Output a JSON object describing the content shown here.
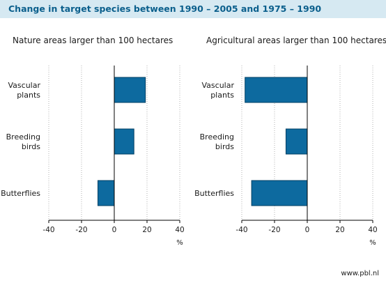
{
  "header": {
    "title": "Change in target species between 1990 – 2005 and 1975 – 1990"
  },
  "footer": {
    "source": "www.pbl.nl"
  },
  "colors": {
    "bar_fill": "#0d6a9f",
    "bar_stroke": "#003f63",
    "title_bg": "#d6e9f2",
    "title_text": "#0b5f8c",
    "grid": "#b0b0b0"
  },
  "chart_data": [
    {
      "type": "bar",
      "orientation": "horizontal",
      "title": "Nature areas larger than 100 hectares",
      "categories": [
        [
          "Vascular",
          "plants"
        ],
        [
          "Breeding",
          "birds"
        ],
        [
          "Butterflies"
        ]
      ],
      "values": [
        19,
        12,
        -10
      ],
      "xlim": [
        -40,
        40
      ],
      "xticks": [
        -40,
        -20,
        0,
        20,
        40
      ],
      "xunit": "%",
      "grid": true
    },
    {
      "type": "bar",
      "orientation": "horizontal",
      "title": "Agricultural areas larger than 100 hectares",
      "categories": [
        [
          "Vascular",
          "plants"
        ],
        [
          "Breeding",
          "birds"
        ],
        [
          "Butterflies"
        ]
      ],
      "values": [
        -38,
        -13,
        -34
      ],
      "xlim": [
        -40,
        40
      ],
      "xticks": [
        -40,
        -20,
        0,
        20,
        40
      ],
      "xunit": "%",
      "grid": true
    }
  ]
}
